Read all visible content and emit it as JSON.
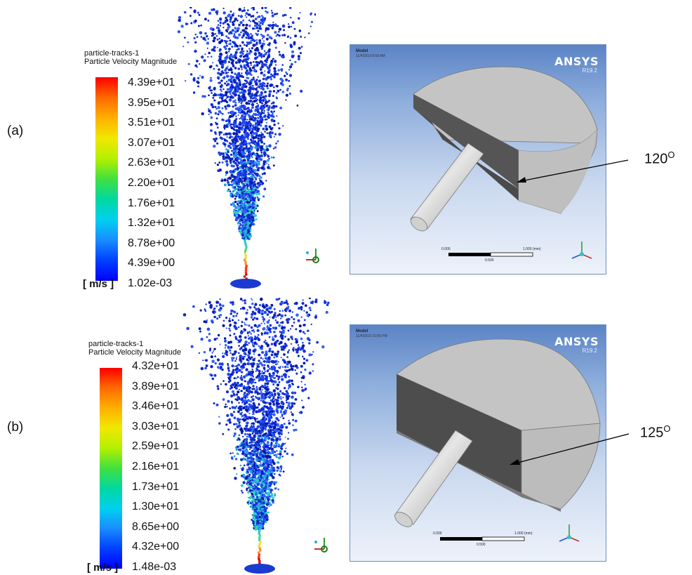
{
  "panels": [
    {
      "label": "(a)",
      "legend": {
        "title_line1": "particle-tracks-1",
        "title_line2": "Particle Velocity Magnitude",
        "ticks": [
          "4.39e+01",
          "3.95e+01",
          "3.51e+01",
          "3.07e+01",
          "2.63e+01",
          "2.20e+01",
          "1.76e+01",
          "1.32e+01",
          "8.78e+00",
          "4.39e+00",
          "1.02e-03"
        ],
        "unit": "[ m/s ]"
      },
      "model": {
        "title": "Model",
        "date": "11/4/2019 8:58 AM",
        "brand": "ANSYS",
        "version": "R19.2",
        "scale_left": "0.000",
        "scale_right": "1.000 (mm)",
        "scale_mid": "0.500"
      },
      "angle_value": "120",
      "angle_unit": "O"
    },
    {
      "label": "(b)",
      "legend": {
        "title_line1": "particle-tracks-1",
        "title_line2": "Particle Velocity Magnitude",
        "ticks": [
          "4.32e+01",
          "3.89e+01",
          "3.46e+01",
          "3.03e+01",
          "2.59e+01",
          "2.16e+01",
          "1.73e+01",
          "1.30e+01",
          "8.65e+00",
          "4.32e+00",
          "1.48e-03"
        ],
        "unit": "[ m/s ]"
      },
      "model": {
        "title": "Model",
        "date": "11/4/2019 10:05 PM",
        "brand": "ANSYS",
        "version": "R19.2",
        "scale_left": "0.000",
        "scale_right": "1.000 (mm)",
        "scale_mid": "0.500"
      },
      "angle_value": "125",
      "angle_unit": "O"
    }
  ],
  "colormap": [
    "#ff0000",
    "#ff6a00",
    "#ffb000",
    "#f0e800",
    "#b4f000",
    "#40e040",
    "#00d8a0",
    "#00d0f0",
    "#1a8cff",
    "#0040ff",
    "#0000ff"
  ]
}
